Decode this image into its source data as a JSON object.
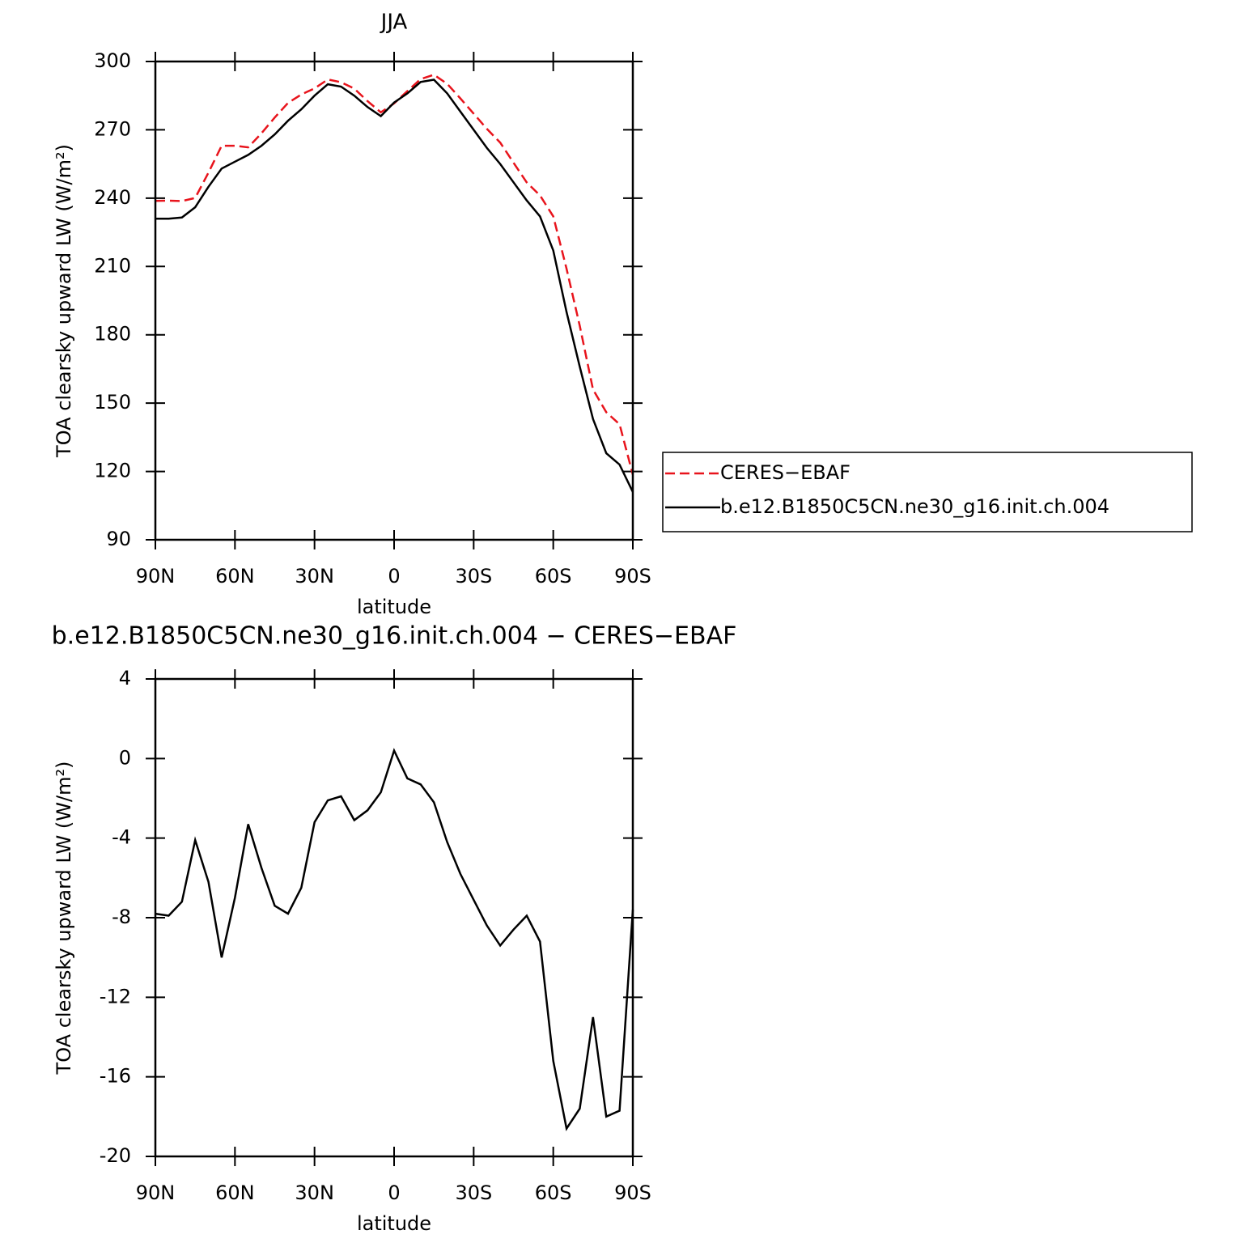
{
  "chart_data": [
    {
      "type": "line",
      "title": "JJA",
      "xlabel": "latitude",
      "ylabel": "TOA clearsky upward LW (W/m²)",
      "x": [
        90,
        85,
        80,
        75,
        70,
        65,
        60,
        55,
        50,
        45,
        40,
        35,
        30,
        25,
        20,
        15,
        10,
        5,
        0,
        -5,
        -10,
        -15,
        -20,
        -25,
        -30,
        -35,
        -40,
        -45,
        -50,
        -55,
        -60,
        -65,
        -70,
        -75,
        -80,
        -85,
        -90
      ],
      "xlim": [
        90,
        -90
      ],
      "xticks": [
        {
          "value": 90,
          "label": "90N"
        },
        {
          "value": 60,
          "label": "60N"
        },
        {
          "value": 30,
          "label": "30N"
        },
        0,
        {
          "value": -30,
          "label": "30S"
        },
        {
          "value": -60,
          "label": "60S"
        },
        {
          "value": -90,
          "label": "90S"
        }
      ],
      "ylim": [
        90,
        300
      ],
      "yticks": [
        90,
        120,
        150,
        180,
        210,
        240,
        270,
        300
      ],
      "legend": "right",
      "series": [
        {
          "name": "CERES−EBAF",
          "color": "#e8141c",
          "dashed": true,
          "values": [
            238.8,
            238.9,
            238.7,
            240.1,
            251.2,
            263,
            263,
            262.3,
            268.5,
            275.4,
            281.8,
            285.5,
            288.2,
            292.1,
            290.9,
            288.1,
            282.6,
            277.7,
            281.6,
            287,
            292.3,
            294.2,
            290.2,
            283.8,
            277.1,
            270.4,
            264.4,
            255.6,
            246.9,
            241.2,
            232,
            209,
            184,
            156,
            146,
            140.7,
            118.6
          ]
        },
        {
          "name": "b.e12.B1850C5CN.ne30_g16.init.ch.004",
          "color": "#000000",
          "dashed": false,
          "values": [
            231,
            231,
            231.5,
            236,
            245,
            253,
            256,
            259,
            263,
            268,
            274,
            279,
            285,
            290,
            289,
            285,
            280,
            276,
            282,
            286,
            291,
            292,
            286,
            278,
            270,
            262,
            255,
            247,
            239,
            232,
            217,
            190,
            166,
            143,
            128,
            123,
            111
          ]
        }
      ]
    },
    {
      "type": "line",
      "title": "b.e12.B1850C5CN.ne30_g16.init.ch.004 − CERES−EBAF",
      "xlabel": "latitude",
      "ylabel": "TOA clearsky upward LW (W/m²)",
      "x": [
        90,
        85,
        80,
        75,
        70,
        65,
        60,
        55,
        50,
        45,
        40,
        35,
        30,
        25,
        20,
        15,
        10,
        5,
        0,
        -5,
        -10,
        -15,
        -20,
        -25,
        -30,
        -35,
        -40,
        -45,
        -50,
        -55,
        -60,
        -65,
        -70,
        -75,
        -80,
        -85,
        -90
      ],
      "xlim": [
        90,
        -90
      ],
      "xticks": [
        {
          "value": 90,
          "label": "90N"
        },
        {
          "value": 60,
          "label": "60N"
        },
        {
          "value": 30,
          "label": "30N"
        },
        0,
        {
          "value": -30,
          "label": "30S"
        },
        {
          "value": -60,
          "label": "60S"
        },
        {
          "value": -90,
          "label": "90S"
        }
      ],
      "ylim": [
        -20,
        4
      ],
      "yticks": [
        -20,
        -16,
        -12,
        -8,
        -4,
        0,
        4
      ],
      "color": "#000000",
      "values": [
        -7.8,
        -7.9,
        -7.2,
        -4.1,
        -6.2,
        -10,
        -7,
        -3.3,
        -5.5,
        -7.4,
        -7.8,
        -6.5,
        -3.2,
        -2.1,
        -1.9,
        -3.1,
        -2.6,
        -1.7,
        0.4,
        -1,
        -1.3,
        -2.2,
        -4.2,
        -5.8,
        -7.1,
        -8.4,
        -9.4,
        -8.6,
        -7.9,
        -9.2,
        -15.2,
        -18.6,
        -17.6,
        -13,
        -18,
        -17.7,
        -7.6
      ]
    }
  ]
}
